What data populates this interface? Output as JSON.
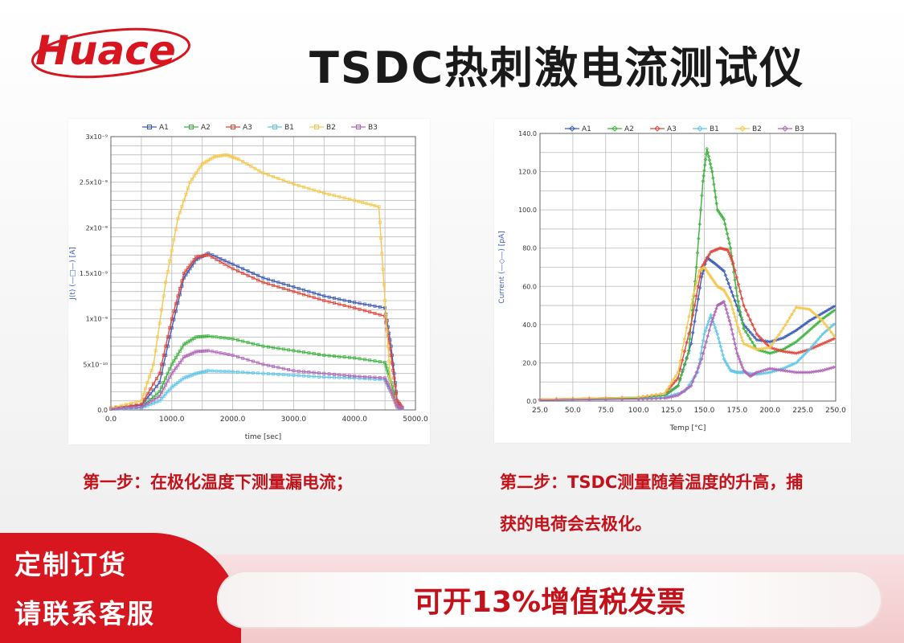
{
  "header": {
    "logo_text": "Huace",
    "title": "TSDC热刺激电流测试仪"
  },
  "colors": {
    "brand_red": "#d7161f",
    "caption_red": "#c4121a",
    "A1": "#3b5bb5",
    "A2": "#3cb33c",
    "A3": "#e0463b",
    "B1": "#5fc6ea",
    "B2": "#f5c74a",
    "B3": "#b065b8"
  },
  "chart_data": [
    {
      "type": "line",
      "title": "",
      "xlabel": "time [sec]",
      "ylabel": "J(t) (—□—) [A]",
      "xlim": [
        0,
        5000
      ],
      "ylim": [
        0,
        3e-09
      ],
      "x_tick_labels": [
        "0.0",
        "1000.0",
        "2000.0",
        "3000.0",
        "4000.0",
        "5000.0"
      ],
      "y_tick_labels": [
        "0.0",
        "5x10⁻¹⁰",
        "1x10⁻⁹",
        "1.5x10⁻⁹",
        "2x10⁻⁹",
        "2.5x10⁻⁹",
        "3x10⁻⁹"
      ],
      "legend_position": "top",
      "grid": true,
      "series": [
        {
          "name": "A1",
          "x": [
            0,
            500,
            800,
            1000,
            1200,
            1400,
            1600,
            2000,
            2500,
            3000,
            3500,
            4000,
            4500,
            4600,
            4700,
            4800
          ],
          "y": [
            2e-11,
            5e-11,
            3e-10,
            9e-10,
            1.45e-09,
            1.65e-09,
            1.72e-09,
            1.6e-09,
            1.45e-09,
            1.35e-09,
            1.25e-09,
            1.18e-09,
            1.12e-09,
            7e-10,
            1e-10,
            1e-11
          ]
        },
        {
          "name": "A2",
          "x": [
            0,
            500,
            800,
            1000,
            1200,
            1400,
            1600,
            2000,
            2500,
            3000,
            3500,
            4000,
            4500,
            4600,
            4700,
            4800
          ],
          "y": [
            1e-11,
            3e-11,
            2e-10,
            5e-10,
            7.2e-10,
            8e-10,
            8.1e-10,
            7.8e-10,
            7e-10,
            6.5e-10,
            6e-10,
            5.7e-10,
            5.2e-10,
            3e-10,
            5e-11,
            1e-11
          ]
        },
        {
          "name": "A3",
          "x": [
            0,
            500,
            800,
            1000,
            1200,
            1400,
            1600,
            2000,
            2500,
            3000,
            3500,
            4000,
            4500,
            4600,
            4700,
            4800
          ],
          "y": [
            2e-11,
            6e-11,
            4e-10,
            1e-09,
            1.5e-09,
            1.68e-09,
            1.7e-09,
            1.55e-09,
            1.4e-09,
            1.3e-09,
            1.2e-09,
            1.12e-09,
            1.03e-09,
            6e-10,
            1e-10,
            1e-11
          ]
        },
        {
          "name": "B1",
          "x": [
            0,
            500,
            800,
            1000,
            1200,
            1400,
            1600,
            2000,
            2500,
            3000,
            3500,
            4000,
            4500,
            4600,
            4700,
            4800
          ],
          "y": [
            1e-11,
            2e-11,
            1e-10,
            2.5e-10,
            3.5e-10,
            4e-10,
            4.3e-10,
            4.2e-10,
            4e-10,
            3.8e-10,
            3.6e-10,
            3.5e-10,
            3.3e-10,
            2e-10,
            3e-11,
            1e-11
          ]
        },
        {
          "name": "B2",
          "x": [
            0,
            500,
            700,
            900,
            1100,
            1300,
            1500,
            1700,
            1900,
            2100,
            2500,
            3000,
            3500,
            4000,
            4400,
            4500,
            4600,
            4700
          ],
          "y": [
            2e-11,
            1e-10,
            5e-10,
            1.4e-09,
            2.1e-09,
            2.5e-09,
            2.7e-09,
            2.78e-09,
            2.8e-09,
            2.75e-09,
            2.6e-09,
            2.48e-09,
            2.38e-09,
            2.3e-09,
            2.23e-09,
            1.2e-09,
            2e-10,
            2e-11
          ]
        },
        {
          "name": "B3",
          "x": [
            0,
            500,
            800,
            1000,
            1200,
            1400,
            1600,
            2000,
            2500,
            3000,
            3500,
            4000,
            4500,
            4600,
            4700,
            4800
          ],
          "y": [
            1e-11,
            3e-11,
            1.5e-10,
            4e-10,
            5.8e-10,
            6.4e-10,
            6.5e-10,
            6e-10,
            5e-10,
            4.3e-10,
            4e-10,
            3.7e-10,
            3.5e-10,
            2e-10,
            4e-11,
            1e-11
          ]
        }
      ]
    },
    {
      "type": "line",
      "title": "",
      "xlabel": "Temp [°C]",
      "ylabel": "Current (—◇—) [pA]",
      "xlim": [
        25,
        250
      ],
      "ylim": [
        0,
        140
      ],
      "x_tick_labels": [
        "25.0",
        "50.0",
        "75.0",
        "100.0",
        "125.0",
        "150.0",
        "175.0",
        "200.0",
        "225.0",
        "250.0"
      ],
      "y_tick_labels": [
        "0.0",
        "20.0",
        "40.0",
        "60.0",
        "80.0",
        "100.0",
        "120.0",
        "140.0"
      ],
      "legend_position": "top",
      "grid": true,
      "series": [
        {
          "name": "A1",
          "x": [
            25,
            100,
            120,
            130,
            140,
            148,
            152,
            158,
            165,
            172,
            180,
            190,
            200,
            210,
            220,
            230,
            240,
            250
          ],
          "y": [
            1,
            2,
            3,
            8,
            30,
            65,
            75,
            72,
            68,
            55,
            40,
            32,
            31,
            33,
            37,
            42,
            46,
            50
          ]
        },
        {
          "name": "A2",
          "x": [
            25,
            100,
            120,
            130,
            138,
            144,
            149,
            152,
            156,
            160,
            165,
            170,
            175,
            180,
            190,
            200,
            210,
            220,
            230,
            240,
            250
          ],
          "y": [
            1,
            1.5,
            3,
            8,
            25,
            70,
            115,
            132,
            120,
            100,
            95,
            80,
            55,
            38,
            27,
            25,
            27,
            31,
            37,
            43,
            48
          ]
        },
        {
          "name": "A3",
          "x": [
            25,
            100,
            120,
            130,
            140,
            148,
            155,
            162,
            168,
            172,
            180,
            190,
            200,
            210,
            220,
            230,
            240,
            250
          ],
          "y": [
            1,
            2,
            4,
            12,
            40,
            70,
            78,
            80,
            79,
            72,
            50,
            35,
            28,
            26,
            25,
            27,
            30,
            33
          ]
        },
        {
          "name": "B1",
          "x": [
            25,
            100,
            120,
            135,
            145,
            150,
            155,
            160,
            165,
            170,
            175,
            180,
            190,
            200,
            210,
            220,
            230,
            240,
            250
          ],
          "y": [
            0.5,
            1,
            2,
            5,
            15,
            35,
            45,
            35,
            22,
            16,
            15,
            15,
            14,
            15,
            17,
            20,
            27,
            35,
            41
          ]
        },
        {
          "name": "B2",
          "x": [
            25,
            100,
            120,
            130,
            140,
            146,
            150,
            155,
            160,
            165,
            170,
            175,
            180,
            190,
            200,
            210,
            220,
            230,
            240,
            250
          ],
          "y": [
            1,
            2,
            4,
            15,
            50,
            68,
            70,
            65,
            60,
            58,
            52,
            40,
            30,
            27,
            28,
            38,
            49,
            48,
            42,
            33
          ]
        },
        {
          "name": "B3",
          "x": [
            25,
            100,
            120,
            130,
            140,
            148,
            155,
            160,
            165,
            170,
            175,
            180,
            185,
            190,
            200,
            210,
            220,
            230,
            240,
            250
          ],
          "y": [
            0.5,
            1,
            1.5,
            3,
            8,
            22,
            40,
            50,
            52,
            40,
            25,
            16,
            13,
            15,
            17,
            16,
            15,
            15,
            16,
            18
          ]
        }
      ]
    }
  ],
  "captions": {
    "step1": "第一步：在极化温度下测量漏电流；",
    "step2_line1": "第二步：TSDC测量随着温度的升高，捕",
    "step2_line2": "获的电荷会去极化。"
  },
  "footer": {
    "left_line1": "定制订货",
    "left_line2": "请联系客服",
    "invoice": "可开13%增值税发票"
  }
}
